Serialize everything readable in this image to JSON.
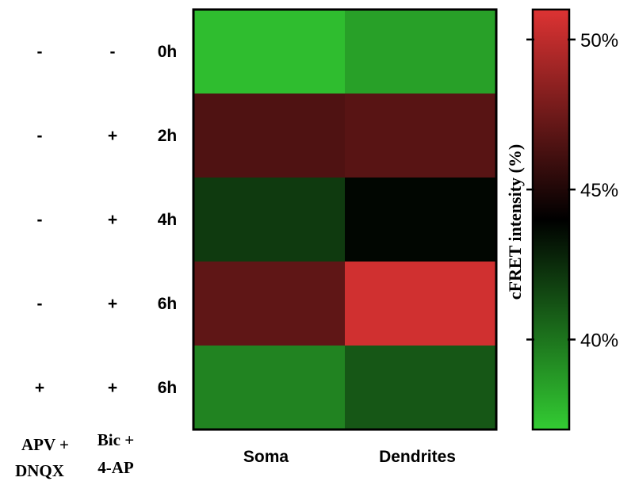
{
  "chart_data": {
    "type": "heatmap",
    "title": "",
    "columns": [
      "Soma",
      "Dendrites"
    ],
    "row_labels": [
      "0h",
      "2h",
      "4h",
      "6h",
      "6h"
    ],
    "conditions": {
      "headers": [
        {
          "lines": [
            "APV +",
            "DNQX"
          ]
        },
        {
          "lines": [
            "Bic +",
            "4-AP"
          ]
        }
      ],
      "apv_dnqx": [
        "-",
        "-",
        "-",
        "-",
        "+"
      ],
      "bic_4ap": [
        "-",
        "+",
        "+",
        "+",
        "+"
      ]
    },
    "values": [
      [
        37.5,
        38.5
      ],
      [
        46.5,
        46.8
      ],
      [
        42.0,
        43.8
      ],
      [
        47.0,
        50.6
      ],
      [
        39.5,
        41.0
      ]
    ],
    "colorbar": {
      "label": "cFRET intensity (%)",
      "range": [
        37,
        51
      ],
      "midpoint": 44,
      "ticks": [
        {
          "value": 50,
          "label": "50%"
        },
        {
          "value": 45,
          "label": "45%"
        },
        {
          "value": 40,
          "label": "40%"
        }
      ],
      "colors": {
        "low": "#33cc33",
        "mid": "#000000",
        "high": "#dd3333"
      }
    }
  }
}
